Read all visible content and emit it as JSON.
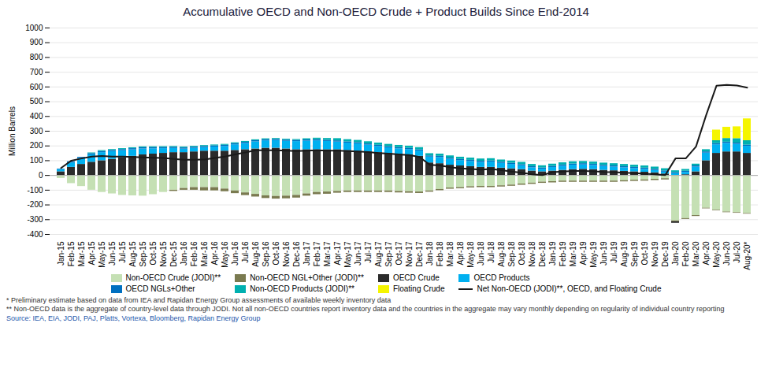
{
  "chart_data": {
    "type": "bar",
    "stacked": true,
    "title": "Accumulative OECD and Non-OECD Crude + Product Builds Since End-2014",
    "y_label": "Million Barrels",
    "annotations": [
      "* Preliminary estimate based on data from IEA and Rapidan Energy Group assessments of available weekly inventory data",
      "** Non-OECD data is the aggregate of country-level data through JODI. Not all non-OECD countries report inventory data and the countries in the aggregate may vary monthly depending on regularity of individual country reporting",
      "Source: IEA, EIA, JODI, PAJ, Platts, Vortexа, Bloomberg, Rapidan Energy Group"
    ],
    "categories": [
      "Jan-15",
      "Feb-15",
      "Mar-15",
      "Apr-15",
      "May-15",
      "Jun-15",
      "Jul-15",
      "Aug-15",
      "Sep-15",
      "Oct-15",
      "Nov-15",
      "Dec-15",
      "Jan-16",
      "Feb-16",
      "Mar-16",
      "Apr-16",
      "May-16",
      "Jun-16",
      "Jul-16",
      "Aug-16",
      "Sep-16",
      "Oct-16",
      "Nov-16",
      "Dec-16",
      "Jan-17",
      "Feb-17",
      "Mar-17",
      "Apr-17",
      "May-17",
      "Jun-17",
      "Jul-17",
      "Aug-17",
      "Sep-17",
      "Oct-17",
      "Nov-17",
      "Dec-17",
      "Jan-18",
      "Feb-18",
      "Mar-18",
      "Apr-18",
      "May-18",
      "Jun-18",
      "Jul-18",
      "Aug-18",
      "Sep-18",
      "Oct-18",
      "Nov-18",
      "Dec-18",
      "Jan-19",
      "Feb-19",
      "Mar-19",
      "Apr-19",
      "May-19",
      "Jun-19",
      "Jul-19",
      "Aug-19",
      "Sep-19",
      "Oct-19",
      "Nov-19",
      "Dec-19",
      "Jan-20",
      "Feb-20",
      "Mar-20",
      "Apr-20",
      "May-20",
      "Jun-20",
      "Jul-20",
      "Aug-20*"
    ],
    "series": [
      {
        "name": "Non-OECD Crude (JODI)**",
        "color": "#c5e0b4",
        "values": [
          -20,
          -55,
          -75,
          -100,
          -115,
          -125,
          -135,
          -138,
          -140,
          -130,
          -115,
          -100,
          -88,
          -82,
          -82,
          -82,
          -92,
          -105,
          -118,
          -128,
          -138,
          -142,
          -140,
          -135,
          -125,
          -115,
          -112,
          -108,
          -105,
          -105,
          -105,
          -105,
          -105,
          -108,
          -110,
          -112,
          -105,
          -95,
          -85,
          -82,
          -76,
          -74,
          -74,
          -70,
          -65,
          -58,
          -52,
          -45,
          -42,
          -38,
          -38,
          -38,
          -38,
          -38,
          -38,
          -35,
          -32,
          -30,
          -26,
          -22,
          -308,
          -292,
          -272,
          -222,
          -235,
          -248,
          -252,
          -258
        ]
      },
      {
        "name": "Non-OECD NGL+Other (JODI)**",
        "color": "#7a7a50",
        "values": [
          0,
          0,
          0,
          0,
          0,
          0,
          0,
          0,
          0,
          0,
          0,
          -8,
          -12,
          -18,
          -22,
          -22,
          -18,
          -18,
          -18,
          -18,
          -18,
          -18,
          -18,
          -18,
          -15,
          -15,
          -15,
          -12,
          -10,
          -10,
          -10,
          -10,
          -10,
          -10,
          -10,
          -10,
          -8,
          -8,
          -8,
          -8,
          -8,
          -8,
          -8,
          -8,
          -8,
          -8,
          -8,
          -8,
          -8,
          -8,
          -8,
          -8,
          -8,
          -8,
          -8,
          -8,
          -8,
          -8,
          -8,
          -8,
          -6,
          -6,
          -6,
          -4,
          -4,
          -4,
          -4,
          -4
        ]
      },
      {
        "name": "OECD Crude",
        "color": "#2b2b2b",
        "values": [
          25,
          55,
          75,
          90,
          100,
          110,
          120,
          130,
          140,
          145,
          150,
          155,
          155,
          160,
          165,
          165,
          165,
          170,
          175,
          180,
          185,
          185,
          180,
          175,
          175,
          175,
          175,
          175,
          170,
          165,
          160,
          155,
          150,
          145,
          140,
          130,
          85,
          80,
          70,
          65,
          60,
          55,
          55,
          50,
          45,
          40,
          30,
          25,
          30,
          35,
          40,
          42,
          40,
          35,
          32,
          28,
          25,
          22,
          18,
          10,
          -10,
          5,
          25,
          100,
          150,
          160,
          160,
          150
        ]
      },
      {
        "name": "OECD Products",
        "color": "#00b0f0",
        "values": [
          15,
          30,
          40,
          50,
          55,
          52,
          48,
          44,
          40,
          36,
          32,
          28,
          24,
          24,
          24,
          28,
          32,
          38,
          42,
          48,
          50,
          52,
          52,
          55,
          58,
          60,
          56,
          52,
          50,
          50,
          46,
          42,
          38,
          36,
          36,
          36,
          40,
          42,
          40,
          36,
          35,
          34,
          36,
          32,
          30,
          26,
          22,
          18,
          24,
          28,
          30,
          30,
          28,
          26,
          25,
          24,
          22,
          20,
          16,
          13,
          12,
          16,
          32,
          52,
          58,
          58,
          52,
          48
        ]
      },
      {
        "name": "OECD NGLs+Other",
        "color": "#0070c0",
        "values": [
          4,
          8,
          8,
          8,
          8,
          8,
          8,
          8,
          8,
          8,
          8,
          8,
          8,
          8,
          8,
          8,
          8,
          8,
          8,
          8,
          8,
          8,
          8,
          8,
          8,
          8,
          8,
          8,
          8,
          8,
          8,
          8,
          8,
          8,
          8,
          8,
          8,
          8,
          8,
          8,
          8,
          8,
          8,
          8,
          8,
          8,
          8,
          8,
          8,
          8,
          8,
          8,
          8,
          8,
          8,
          8,
          8,
          8,
          8,
          8,
          8,
          8,
          8,
          8,
          8,
          8,
          8,
          8
        ]
      },
      {
        "name": "Non-OECD Products (JODI)**",
        "color": "#00b0b0",
        "values": [
          0,
          0,
          0,
          5,
          6,
          6,
          6,
          6,
          6,
          6,
          6,
          6,
          6,
          6,
          6,
          6,
          6,
          6,
          6,
          6,
          6,
          6,
          6,
          6,
          8,
          10,
          12,
          15,
          15,
          15,
          15,
          15,
          15,
          15,
          15,
          15,
          15,
          15,
          15,
          15,
          15,
          15,
          15,
          15,
          15,
          15,
          15,
          15,
          15,
          15,
          15,
          15,
          15,
          15,
          15,
          15,
          15,
          15,
          15,
          15,
          12,
          12,
          12,
          15,
          20,
          25,
          30,
          30
        ]
      },
      {
        "name": "Floating Crude",
        "color": "#f5f500",
        "values": [
          0,
          0,
          0,
          0,
          0,
          0,
          0,
          0,
          0,
          0,
          0,
          0,
          0,
          0,
          0,
          0,
          0,
          0,
          0,
          0,
          0,
          0,
          0,
          0,
          0,
          0,
          0,
          0,
          0,
          0,
          0,
          0,
          0,
          0,
          0,
          0,
          0,
          0,
          0,
          0,
          0,
          0,
          0,
          0,
          0,
          0,
          0,
          0,
          0,
          0,
          0,
          0,
          0,
          0,
          0,
          0,
          0,
          0,
          0,
          0,
          0,
          0,
          0,
          0,
          72,
          76,
          80,
          148
        ]
      },
      {
        "name": "Net Non-OECD (JODI)**, OECD, and Floating Crude",
        "type": "line",
        "color": "#1a1a1a",
        "values": [
          50,
          100,
          115,
          128,
          132,
          128,
          128,
          125,
          122,
          120,
          118,
          112,
          106,
          106,
          108,
          118,
          128,
          142,
          156,
          170,
          170,
          170,
          168,
          165,
          168,
          170,
          168,
          168,
          165,
          162,
          158,
          152,
          148,
          142,
          138,
          125,
          72,
          68,
          55,
          48,
          44,
          40,
          44,
          36,
          26,
          18,
          8,
          2,
          22,
          26,
          30,
          30,
          28,
          24,
          22,
          18,
          16,
          12,
          8,
          2,
          115,
          115,
          195,
          410,
          608,
          614,
          610,
          595
        ]
      }
    ],
    "ylim": [
      -400,
      1000
    ],
    "yticks": [
      -400,
      -300,
      -200,
      -100,
      0,
      100,
      200,
      300,
      400,
      500,
      600,
      700,
      800,
      900,
      1000
    ],
    "grid": true,
    "legend": "bottom"
  }
}
